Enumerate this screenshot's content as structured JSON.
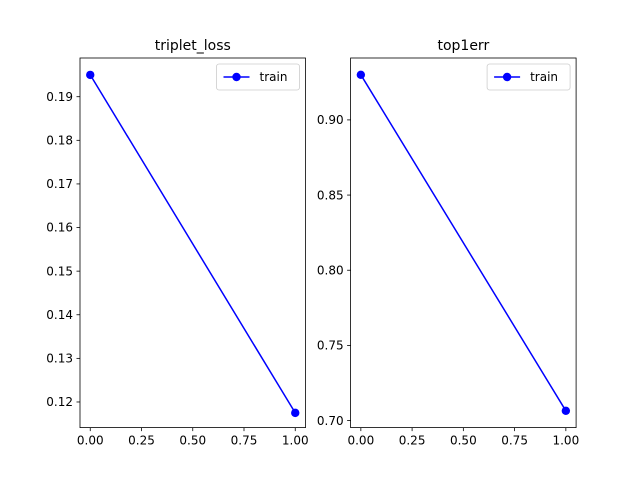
{
  "chart_data": [
    {
      "type": "line",
      "title": "triplet_loss",
      "xlabel": "",
      "ylabel": "",
      "x": [
        0,
        1
      ],
      "series": [
        {
          "name": "train",
          "values": [
            0.195,
            0.1175
          ],
          "color": "#0000ff",
          "marker": "circle"
        }
      ],
      "xlim": [
        -0.05,
        1.05
      ],
      "ylim": [
        0.114125,
        0.198875
      ],
      "xticks": [
        "0.00",
        "0.25",
        "0.50",
        "0.75",
        "1.00"
      ],
      "yticks": [
        "0.12",
        "0.13",
        "0.14",
        "0.15",
        "0.16",
        "0.17",
        "0.18",
        "0.19"
      ],
      "grid": false,
      "legend": "upper right"
    },
    {
      "type": "line",
      "title": "top1err",
      "xlabel": "",
      "ylabel": "",
      "x": [
        0,
        1
      ],
      "series": [
        {
          "name": "train",
          "values": [
            0.93,
            0.7065
          ],
          "color": "#0000ff",
          "marker": "circle"
        }
      ],
      "xlim": [
        -0.05,
        1.05
      ],
      "ylim": [
        0.695325,
        0.941175
      ],
      "xticks": [
        "0.00",
        "0.25",
        "0.50",
        "0.75",
        "1.00"
      ],
      "yticks": [
        "0.70",
        "0.75",
        "0.80",
        "0.85",
        "0.90"
      ],
      "grid": false,
      "legend": "upper right"
    }
  ]
}
